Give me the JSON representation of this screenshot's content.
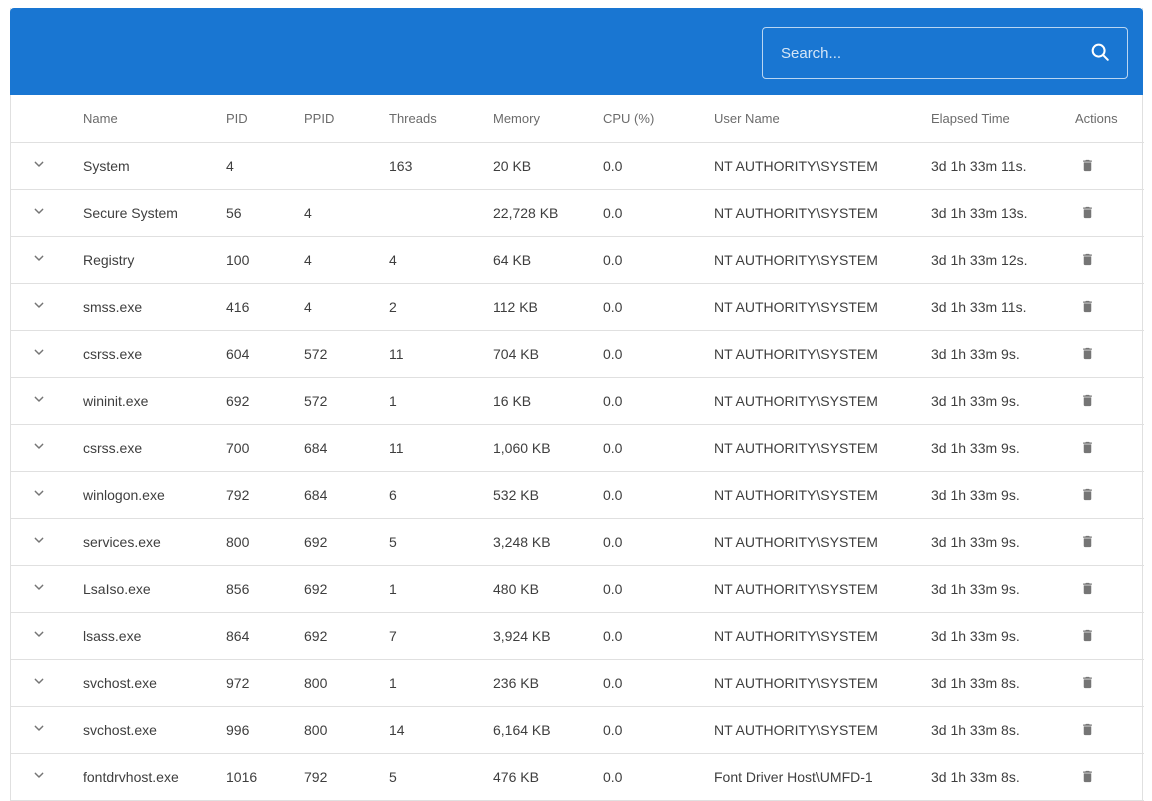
{
  "colors": {
    "accent_blue": "#1976d2",
    "divider": "#e0e0e0",
    "icon_gray": "#757575",
    "header_text": "#6b6b6b",
    "cell_text": "#3e3e3e"
  },
  "toolbar": {
    "search_placeholder": "Search..."
  },
  "icons": {
    "search": "search-icon",
    "expand": "chevron-down-icon",
    "delete": "trash-icon"
  },
  "table": {
    "columns": [
      "",
      "Name",
      "PID",
      "PPID",
      "Threads",
      "Memory",
      "CPU (%)",
      "User Name",
      "Elapsed Time",
      "Actions"
    ],
    "rows": [
      {
        "name": "System",
        "pid": "4",
        "ppid": "",
        "threads": "163",
        "memory": "20 KB",
        "cpu": "0.0",
        "user": "NT AUTHORITY\\SYSTEM",
        "elapsed": "3d 1h 33m 11s."
      },
      {
        "name": "Secure System",
        "pid": "56",
        "ppid": "4",
        "threads": "",
        "memory": "22,728 KB",
        "cpu": "0.0",
        "user": "NT AUTHORITY\\SYSTEM",
        "elapsed": "3d 1h 33m 13s."
      },
      {
        "name": "Registry",
        "pid": "100",
        "ppid": "4",
        "threads": "4",
        "memory": "64 KB",
        "cpu": "0.0",
        "user": "NT AUTHORITY\\SYSTEM",
        "elapsed": "3d 1h 33m 12s."
      },
      {
        "name": "smss.exe",
        "pid": "416",
        "ppid": "4",
        "threads": "2",
        "memory": "112 KB",
        "cpu": "0.0",
        "user": "NT AUTHORITY\\SYSTEM",
        "elapsed": "3d 1h 33m 11s."
      },
      {
        "name": "csrss.exe",
        "pid": "604",
        "ppid": "572",
        "threads": "11",
        "memory": "704 KB",
        "cpu": "0.0",
        "user": "NT AUTHORITY\\SYSTEM",
        "elapsed": "3d 1h 33m 9s."
      },
      {
        "name": "wininit.exe",
        "pid": "692",
        "ppid": "572",
        "threads": "1",
        "memory": "16 KB",
        "cpu": "0.0",
        "user": "NT AUTHORITY\\SYSTEM",
        "elapsed": "3d 1h 33m 9s."
      },
      {
        "name": "csrss.exe",
        "pid": "700",
        "ppid": "684",
        "threads": "11",
        "memory": "1,060 KB",
        "cpu": "0.0",
        "user": "NT AUTHORITY\\SYSTEM",
        "elapsed": "3d 1h 33m 9s."
      },
      {
        "name": "winlogon.exe",
        "pid": "792",
        "ppid": "684",
        "threads": "6",
        "memory": "532 KB",
        "cpu": "0.0",
        "user": "NT AUTHORITY\\SYSTEM",
        "elapsed": "3d 1h 33m 9s."
      },
      {
        "name": "services.exe",
        "pid": "800",
        "ppid": "692",
        "threads": "5",
        "memory": "3,248 KB",
        "cpu": "0.0",
        "user": "NT AUTHORITY\\SYSTEM",
        "elapsed": "3d 1h 33m 9s."
      },
      {
        "name": "LsaIso.exe",
        "pid": "856",
        "ppid": "692",
        "threads": "1",
        "memory": "480 KB",
        "cpu": "0.0",
        "user": "NT AUTHORITY\\SYSTEM",
        "elapsed": "3d 1h 33m 9s."
      },
      {
        "name": "lsass.exe",
        "pid": "864",
        "ppid": "692",
        "threads": "7",
        "memory": "3,924 KB",
        "cpu": "0.0",
        "user": "NT AUTHORITY\\SYSTEM",
        "elapsed": "3d 1h 33m 9s."
      },
      {
        "name": "svchost.exe",
        "pid": "972",
        "ppid": "800",
        "threads": "1",
        "memory": "236 KB",
        "cpu": "0.0",
        "user": "NT AUTHORITY\\SYSTEM",
        "elapsed": "3d 1h 33m 8s."
      },
      {
        "name": "svchost.exe",
        "pid": "996",
        "ppid": "800",
        "threads": "14",
        "memory": "6,164 KB",
        "cpu": "0.0",
        "user": "NT AUTHORITY\\SYSTEM",
        "elapsed": "3d 1h 33m 8s."
      },
      {
        "name": "fontdrvhost.exe",
        "pid": "1016",
        "ppid": "792",
        "threads": "5",
        "memory": "476 KB",
        "cpu": "0.0",
        "user": "Font Driver Host\\UMFD-1",
        "elapsed": "3d 1h 33m 8s."
      }
    ]
  }
}
